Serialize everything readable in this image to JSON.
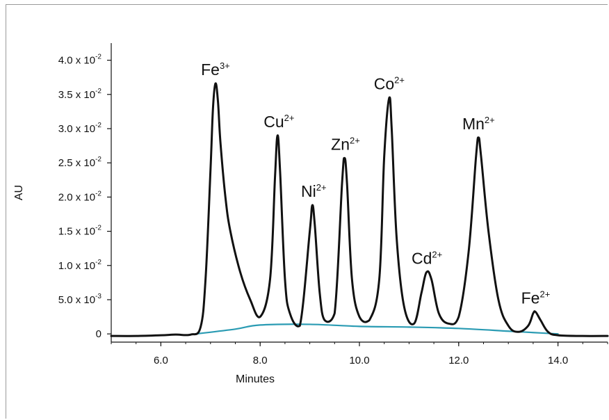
{
  "chart_data": {
    "type": "line",
    "title": "",
    "xlabel": "Minutes",
    "ylabel": "AU",
    "xlim": [
      5.0,
      15.0
    ],
    "ylim": [
      -0.0012,
      0.0425
    ],
    "x_ticks": [
      {
        "value": 6.0,
        "label": "6.0"
      },
      {
        "value": 8.0,
        "label": "8.0"
      },
      {
        "value": 10.0,
        "label": "10.0"
      },
      {
        "value": 12.0,
        "label": "12.0"
      },
      {
        "value": 14.0,
        "label": "14.0"
      }
    ],
    "y_ticks": [
      {
        "value": 0,
        "base": "0",
        "exp": ""
      },
      {
        "value": 0.005,
        "base": "5.0 x 10",
        "exp": "-3"
      },
      {
        "value": 0.01,
        "base": "1.0 x 10",
        "exp": "-2"
      },
      {
        "value": 0.015,
        "base": "1.5 x 10",
        "exp": "-2"
      },
      {
        "value": 0.02,
        "base": "2.0 x 10",
        "exp": "-2"
      },
      {
        "value": 0.025,
        "base": "2.5 x 10",
        "exp": "-2"
      },
      {
        "value": 0.03,
        "base": "3.0 x 10",
        "exp": "-2"
      },
      {
        "value": 0.035,
        "base": "3.5 x 10",
        "exp": "-2"
      },
      {
        "value": 0.04,
        "base": "4.0 x 10",
        "exp": "-2"
      }
    ],
    "series": [
      {
        "name": "",
        "color": "#111111",
        "x": [
          5.0,
          5.5,
          6.0,
          6.3,
          6.6,
          6.8,
          6.9,
          7.0,
          7.05,
          7.1,
          7.15,
          7.2,
          7.3,
          7.4,
          7.6,
          7.8,
          8.0,
          8.2,
          8.3,
          8.35,
          8.4,
          8.5,
          8.6,
          8.8,
          9.0,
          9.05,
          9.1,
          9.2,
          9.3,
          9.5,
          9.65,
          9.7,
          9.75,
          9.85,
          10.0,
          10.2,
          10.4,
          10.5,
          10.6,
          10.65,
          10.75,
          10.9,
          11.1,
          11.25,
          11.35,
          11.45,
          11.6,
          11.8,
          12.0,
          12.2,
          12.35,
          12.4,
          12.45,
          12.6,
          12.8,
          13.0,
          13.2,
          13.4,
          13.5,
          13.55,
          13.65,
          13.8,
          14.0,
          14.5,
          15.0
        ],
        "y": [
          -0.0003,
          -0.0003,
          -0.0002,
          -0.0001,
          -0.0001,
          0.001,
          0.008,
          0.024,
          0.033,
          0.0366,
          0.034,
          0.028,
          0.02,
          0.015,
          0.009,
          0.005,
          0.0025,
          0.008,
          0.023,
          0.029,
          0.024,
          0.008,
          0.003,
          0.0012,
          0.015,
          0.0188,
          0.016,
          0.006,
          0.002,
          0.003,
          0.022,
          0.0257,
          0.022,
          0.008,
          0.0025,
          0.002,
          0.008,
          0.026,
          0.0345,
          0.03,
          0.014,
          0.004,
          0.0015,
          0.006,
          0.009,
          0.008,
          0.003,
          0.0015,
          0.0025,
          0.012,
          0.026,
          0.0287,
          0.026,
          0.015,
          0.005,
          0.0012,
          0.0003,
          0.0012,
          0.003,
          0.0032,
          0.002,
          0.0003,
          -0.0002,
          -0.0003,
          -0.0003
        ]
      },
      {
        "name": "",
        "color": "#2a9bb3",
        "x": [
          6.7,
          7.5,
          8.0,
          9.0,
          10.0,
          11.0,
          12.0,
          13.0,
          13.5,
          14.0
        ],
        "y": [
          0.0,
          0.0007,
          0.0013,
          0.0014,
          0.0011,
          0.001,
          0.0008,
          0.0004,
          0.0002,
          0.0
        ]
      }
    ],
    "peak_labels": [
      {
        "x": 7.1,
        "y": 0.0366,
        "base": "Fe",
        "sup": "3+"
      },
      {
        "x": 8.38,
        "y": 0.029,
        "base": "Cu",
        "sup": "2+"
      },
      {
        "x": 9.08,
        "y": 0.0188,
        "base": "Ni",
        "sup": "2+"
      },
      {
        "x": 9.72,
        "y": 0.0257,
        "base": "Zn",
        "sup": "2+"
      },
      {
        "x": 10.6,
        "y": 0.0345,
        "base": "Co",
        "sup": "2+"
      },
      {
        "x": 11.36,
        "y": 0.009,
        "base": "Cd",
        "sup": "2+"
      },
      {
        "x": 12.4,
        "y": 0.0287,
        "base": "Mn",
        "sup": "2+"
      },
      {
        "x": 13.55,
        "y": 0.0032,
        "base": "Fe",
        "sup": "2+"
      }
    ]
  }
}
